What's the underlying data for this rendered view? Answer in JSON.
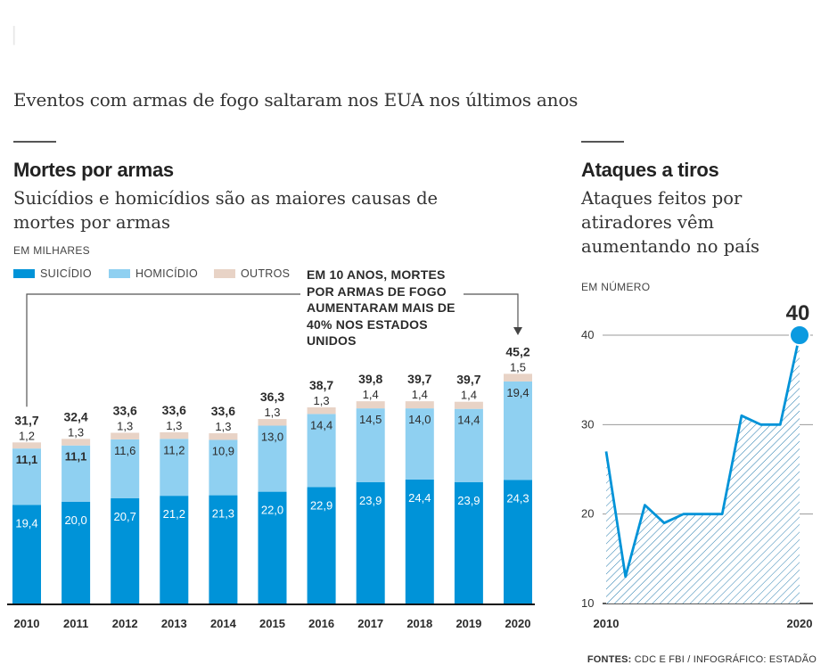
{
  "headline": "Eventos com armas de fogo saltaram nos EUA nos últimos anos",
  "left_panel": {
    "title": "Mortes por armas",
    "subtitle": "Suicídios e homicídios são as maiores causas de mortes por armas",
    "unit": "EM MILHARES",
    "legend": [
      "SUICÍDIO",
      "HOMICÍDIO",
      "OUTROS"
    ],
    "annotation": "EM 10 ANOS, MORTES POR ARMAS DE FOGO AUMENTARAM MAIS DE 40% NOS ESTADOS UNIDOS"
  },
  "right_panel": {
    "title": "Ataques a tiros",
    "subtitle": "Ataques feitos por atiradores vêm aumentando no país",
    "unit": "EM NÚMERO",
    "highlight_value": "40"
  },
  "source": {
    "label": "FONTES:",
    "text": "CDC E FBI / INFOGRÁFICO: ESTADÃO"
  },
  "colors": {
    "suicide": "#0093d8",
    "homicide": "#8fd0f1",
    "others": "#e8d3c6",
    "line": "#0093d8",
    "text": "#2b2b2b"
  },
  "chart_data": [
    {
      "type": "bar",
      "stacked": true,
      "categories": [
        "2010",
        "2011",
        "2012",
        "2013",
        "2014",
        "2015",
        "2016",
        "2017",
        "2018",
        "2019",
        "2020"
      ],
      "series": [
        {
          "name": "SUICÍDIO",
          "values": [
            19.4,
            20.0,
            20.7,
            21.2,
            21.3,
            22.0,
            22.9,
            23.9,
            24.4,
            23.9,
            24.3
          ],
          "labels": [
            "19,4",
            "20,0",
            "20,7",
            "21,2",
            "21,3",
            "22,0",
            "22,9",
            "23,9",
            "24,4",
            "23,9",
            "24,3"
          ]
        },
        {
          "name": "HOMICÍDIO",
          "values": [
            11.1,
            11.1,
            11.6,
            11.2,
            10.9,
            13.0,
            14.4,
            14.5,
            14.0,
            14.4,
            19.4
          ],
          "labels": [
            "11,1",
            "11,1",
            "11,6",
            "11,2",
            "10,9",
            "13,0",
            "14,4",
            "14,5",
            "14,0",
            "14,4",
            "19,4"
          ]
        },
        {
          "name": "OUTROS",
          "values": [
            1.2,
            1.3,
            1.3,
            1.3,
            1.3,
            1.3,
            1.3,
            1.4,
            1.4,
            1.4,
            1.5
          ],
          "labels": [
            "1,2",
            "1,3",
            "1,3",
            "1,3",
            "1,3",
            "1,3",
            "1,3",
            "1,4",
            "1,4",
            "1,4",
            "1,5"
          ]
        }
      ],
      "totals": [
        "31,7",
        "32,4",
        "33,6",
        "33,6",
        "33,6",
        "36,3",
        "38,7",
        "39,8",
        "39,7",
        "39,7",
        "45,2"
      ],
      "ylabel": "EM MILHARES",
      "ylim": [
        0,
        47
      ]
    },
    {
      "type": "area",
      "x": [
        2010,
        2011,
        2012,
        2013,
        2014,
        2015,
        2016,
        2017,
        2018,
        2019,
        2020
      ],
      "y": [
        27,
        13,
        21,
        19,
        20,
        20,
        20,
        31,
        30,
        30,
        40
      ],
      "ylabel": "EM NÚMERO",
      "xticks": [
        "2010",
        "2020"
      ],
      "yticks": [
        "10",
        "20",
        "30",
        "40"
      ],
      "ylim": [
        10,
        40
      ],
      "grid": true
    }
  ]
}
